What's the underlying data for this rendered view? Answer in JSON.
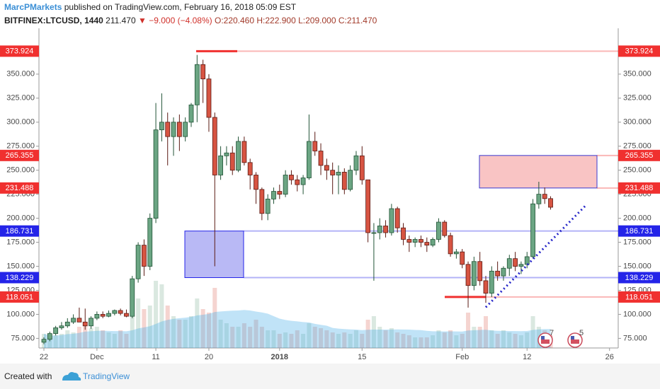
{
  "header": {
    "author": "MarcPMarkets",
    "published": "published on TradingView.com, February 16, 2018 05:09 EST",
    "symbol": "BITFINEX:LTCUSD, 1440",
    "price": "211.470",
    "arrow": "▼",
    "change": "−9.000 (−4.08%)",
    "open": "O:220.460",
    "high": "H:222.900",
    "low": "L:209.000",
    "close": "C:211.470"
  },
  "footer": {
    "created": "Created with",
    "brand": "TradingView"
  },
  "chart_data": {
    "type": "candlestick",
    "categories": [
      "22",
      null,
      null,
      null,
      null,
      null,
      null,
      null,
      null,
      "Dec",
      null,
      null,
      null,
      null,
      null,
      null,
      null,
      null,
      null,
      "11",
      null,
      null,
      null,
      null,
      null,
      null,
      null,
      null,
      "20",
      null,
      null,
      null,
      null,
      null,
      null,
      null,
      null,
      null,
      null,
      null,
      "2018",
      null,
      null,
      null,
      null,
      null,
      null,
      null,
      null,
      null,
      null,
      null,
      null,
      null,
      "15",
      null,
      null,
      null,
      null,
      null,
      null,
      null,
      null,
      null,
      null,
      null,
      null,
      null,
      null,
      null,
      null,
      "Feb",
      null,
      null,
      null,
      null,
      null,
      null,
      null,
      null,
      null,
      null,
      "12",
      null,
      null,
      null,
      null,
      null,
      null,
      null,
      null,
      null,
      null,
      null,
      null,
      null,
      "26",
      null
    ],
    "open": [
      71,
      74,
      80,
      86,
      88,
      92,
      96,
      92,
      88,
      96,
      100,
      98,
      101,
      104,
      101,
      98,
      137,
      172,
      150,
      200,
      292,
      300,
      285,
      300,
      285,
      300,
      318,
      360,
      345,
      305,
      245,
      265,
      268,
      250,
      280,
      258,
      245,
      230,
      205,
      220,
      228,
      225,
      245,
      240,
      235,
      242,
      280,
      270,
      255,
      250,
      245,
      248,
      230,
      250,
      265,
      240,
      185,
      185,
      192,
      185,
      210,
      190,
      178,
      175,
      178,
      175,
      172,
      178,
      196,
      182,
      163,
      165,
      152,
      130,
      155,
      135,
      122,
      145,
      140,
      148,
      158,
      150,
      152,
      160,
      215,
      225,
      220.46,
      null,
      null,
      null,
      null,
      null,
      null,
      null,
      null,
      null,
      null,
      null
    ],
    "high": [
      76,
      82,
      88,
      92,
      96,
      100,
      107,
      106,
      98,
      103,
      103,
      104,
      105,
      106,
      105,
      140,
      175,
      178,
      205,
      320,
      330,
      310,
      305,
      308,
      305,
      320,
      370,
      365,
      350,
      310,
      275,
      275,
      275,
      285,
      285,
      262,
      248,
      232,
      225,
      232,
      235,
      250,
      250,
      245,
      245,
      308,
      290,
      278,
      262,
      258,
      255,
      252,
      255,
      270,
      275,
      240,
      195,
      200,
      198,
      215,
      212,
      195,
      182,
      180,
      182,
      180,
      180,
      200,
      198,
      185,
      168,
      168,
      155,
      160,
      165,
      140,
      150,
      155,
      150,
      162,
      165,
      155,
      165,
      220,
      238,
      232,
      222.9,
      null,
      null,
      null,
      null,
      null,
      null,
      null,
      null,
      null,
      null,
      null
    ],
    "low": [
      69,
      72,
      78,
      84,
      86,
      90,
      94,
      84,
      85,
      94,
      96,
      97,
      99,
      99,
      97,
      96,
      133,
      140,
      146,
      195,
      280,
      255,
      265,
      270,
      280,
      295,
      300,
      320,
      290,
      150,
      240,
      255,
      245,
      248,
      255,
      230,
      215,
      198,
      198,
      215,
      220,
      222,
      235,
      228,
      225,
      240,
      265,
      245,
      240,
      225,
      225,
      225,
      228,
      245,
      235,
      175,
      135,
      178,
      180,
      182,
      185,
      172,
      165,
      170,
      170,
      165,
      170,
      175,
      180,
      160,
      158,
      148,
      107,
      125,
      130,
      112,
      118,
      135,
      135,
      140,
      145,
      142,
      148,
      158,
      210,
      215,
      209,
      null,
      null,
      null,
      null,
      null,
      null,
      null,
      null,
      null,
      null,
      null
    ],
    "close": [
      74,
      80,
      86,
      88,
      92,
      96,
      92,
      88,
      96,
      100,
      98,
      101,
      104,
      101,
      98,
      137,
      172,
      150,
      200,
      292,
      300,
      285,
      300,
      285,
      300,
      318,
      360,
      345,
      305,
      245,
      265,
      268,
      250,
      280,
      258,
      245,
      230,
      205,
      220,
      228,
      225,
      245,
      240,
      235,
      242,
      280,
      270,
      255,
      250,
      245,
      248,
      230,
      250,
      265,
      240,
      185,
      185,
      192,
      185,
      210,
      190,
      178,
      175,
      178,
      175,
      172,
      178,
      196,
      182,
      163,
      165,
      152,
      130,
      155,
      135,
      122,
      145,
      140,
      148,
      158,
      150,
      152,
      160,
      215,
      225,
      220.46,
      211.47,
      null,
      null,
      null,
      null,
      null,
      null,
      null,
      null,
      null,
      null,
      null
    ],
    "volume": [
      20,
      15,
      18,
      20,
      25,
      22,
      30,
      35,
      28,
      30,
      25,
      22,
      20,
      25,
      20,
      45,
      70,
      55,
      60,
      95,
      90,
      60,
      45,
      40,
      40,
      45,
      70,
      55,
      50,
      85,
      40,
      35,
      30,
      30,
      35,
      30,
      40,
      30,
      25,
      25,
      20,
      22,
      20,
      25,
      20,
      35,
      30,
      28,
      25,
      22,
      20,
      22,
      20,
      25,
      20,
      40,
      45,
      30,
      25,
      28,
      22,
      20,
      18,
      15,
      15,
      15,
      18,
      25,
      22,
      25,
      18,
      20,
      50,
      30,
      30,
      45,
      25,
      20,
      25,
      22,
      20,
      18,
      22,
      45,
      30,
      25,
      18,
      null,
      null,
      null,
      null,
      null,
      null,
      null,
      null,
      null,
      null,
      null
    ],
    "up_color": "#6ba583",
    "down_color": "#d75442",
    "ylim": [
      65,
      383
    ],
    "yticks": [
      {
        "value": 75,
        "label": "75.000"
      },
      {
        "value": 100,
        "label": "100.000"
      },
      {
        "value": 125,
        "label": "125.000"
      },
      {
        "value": 150,
        "label": "150.000"
      },
      {
        "value": 175,
        "label": "175.000"
      },
      {
        "value": 200,
        "label": "200.000"
      },
      {
        "value": 225,
        "label": "225.000"
      },
      {
        "value": 250,
        "label": "250.000"
      },
      {
        "value": 275,
        "label": "275.000"
      },
      {
        "value": 300,
        "label": "300.000"
      },
      {
        "value": 325,
        "label": "325.000"
      },
      {
        "value": 350,
        "label": "350.000"
      }
    ],
    "grid": false,
    "levels": [
      {
        "value": 373.924,
        "color": "#f0302f"
      },
      {
        "value": 265.355,
        "color": "#f0302f"
      },
      {
        "value": 231.488,
        "color": "#f0302f"
      },
      {
        "value": 186.731,
        "color": "#2424e8"
      },
      {
        "value": 138.229,
        "color": "#2424e8"
      },
      {
        "value": 118.051,
        "color": "#f0302f"
      }
    ],
    "trendline": {
      "values": [
        107.4,
        213.6
      ],
      "color": "#2424c8"
    },
    "events": [
      "7",
      "5"
    ]
  }
}
